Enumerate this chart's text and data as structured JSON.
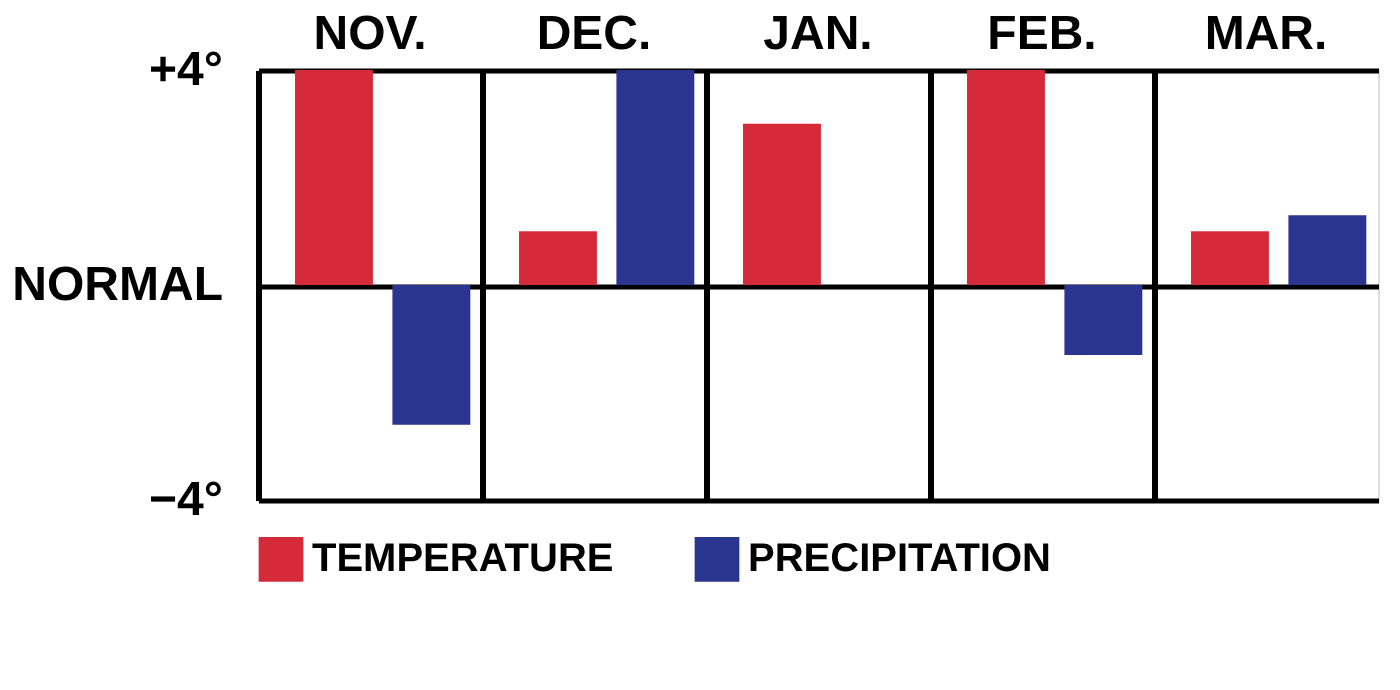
{
  "chart_data": {
    "type": "bar",
    "categories": [
      "NOV.",
      "DEC.",
      "JAN.",
      "FEB.",
      "MAR."
    ],
    "series": [
      {
        "name": "TEMPERATURE",
        "color": "#d42a3a",
        "values": [
          4,
          1,
          3,
          4,
          1
        ]
      },
      {
        "name": "PRECIPITATION",
        "color": "#2a3590",
        "values": [
          -2.6,
          4,
          null,
          -1.3,
          1.3
        ]
      }
    ],
    "ylim": [
      -4,
      4
    ],
    "yticks": [
      {
        "value": 4,
        "label": "+4°"
      },
      {
        "value": 0,
        "label": "NORMAL"
      },
      {
        "value": -4,
        "label": "−4°"
      }
    ],
    "grid": true,
    "legend": "bottom left"
  }
}
